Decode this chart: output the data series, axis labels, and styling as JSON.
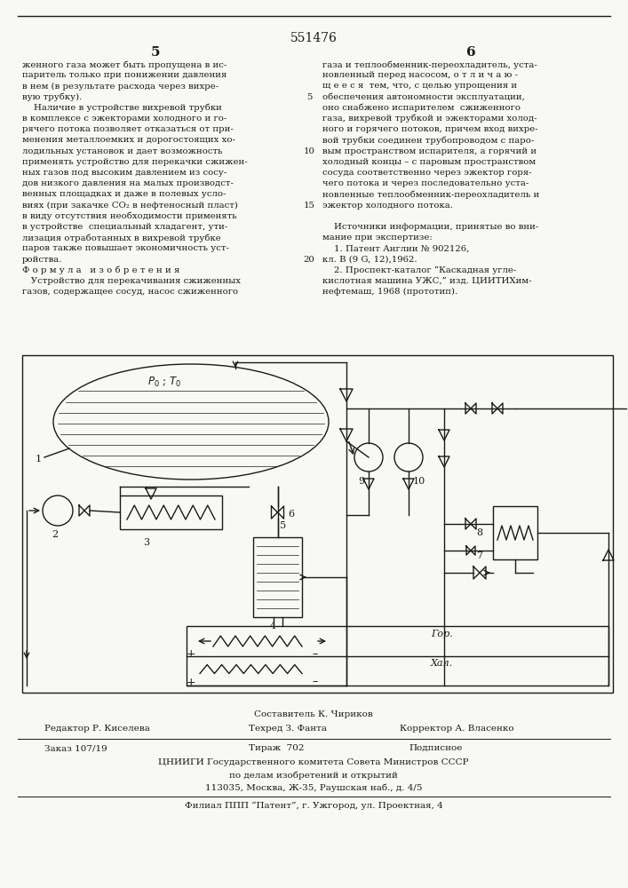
{
  "patent_number": "551476",
  "page_left": "5",
  "page_right": "6",
  "bg_color": "#f8f8f4",
  "text_color": "#1a1a1a",
  "col_left_lines": [
    "женного газа может быть пропущена в ис-",
    "паритель только при понижении давления",
    "в нем (в результате расхода через вихре-",
    "вую трубку).",
    "    Наличие в устройстве вихревой трубки",
    "в комплексе с эжекторами холодного и го-",
    "рячего потока позволяет отказаться от при-",
    "менения металлоемких и дорогостоящих хо-",
    "лодильных установок и дает возможность",
    "применять устройство для перекачки сжижен-",
    "ных газов под высоким давлением из сосу-",
    "дов низкого давления на малых производст-",
    "венных площадках и даже в полевых усло-",
    "виях (при закачке CO₂ в нефтеносный пласт)",
    "в виду отсутствия необходимости применять",
    "в устройстве  специальный хладагент, ути-",
    "лизация отработанных в вихревой трубке",
    "паров также повышает экономичность уст-",
    "ройства.",
    "Ф о р м у л а   и з о б р е т е н и я",
    "   Устройство для перекачивания сжиженных",
    "газов, содержащее сосуд, насос сжиженного"
  ],
  "col_right_lines": [
    "газа и теплообменник-переохладитель, уста-",
    "новленный перед насосом, о т л и ч а ю -",
    "щ е е с я  тем, что, с целью упрощения и",
    "обеспечения автономности эксплуатации,",
    "оно снабжено испарителем  сжиженного",
    "газа, вихревой трубкой и эжекторами холод-",
    "ного и горячего потоков, причем вход вихре-",
    "вой трубки соединен трубопроводом с паро-",
    "вым пространством испарителя, а горячий и",
    "холодный концы – с паровым пространством",
    "сосуда соответственно через эжектор горя-",
    "чего потока и через последовательно уста-",
    "новленные теплообменник-переохладитель и",
    "эжектор холодного потока.",
    "",
    "    Источники информации, принятые во вни-",
    "мание при экспертизе:",
    "    1. Патент Англии № 902126,",
    "кл. B (9 G, 12),1962.",
    "    2. Проспект-каталог “Каскадная угле-",
    "кислотная машина УЖС,” изд. ЦИИТИХим-",
    "нефтемаш, 1968 (прототип)."
  ],
  "footer_line1": "Составитель К. Чириков",
  "footer_line2_left": "Редактор Р. Киселева",
  "footer_line2_mid": "Техред З. Фанта",
  "footer_line2_right": "Корректор А. Власенко",
  "footer_line3_left": "Заказ 107/19",
  "footer_line3_mid": "Тираж  702",
  "footer_line3_right": "Подписное",
  "footer_line4": "ЦНИИГИ Государственного комитета Совета Министров СССР",
  "footer_line5": "по делам изобретений и открытий",
  "footer_line6": "113035, Москва, Ж-35, Раушская наб., д. 4/5",
  "footer_line7": "Филиал ППП “Патент”, г. Ужгород, ул. Проектная, 4"
}
